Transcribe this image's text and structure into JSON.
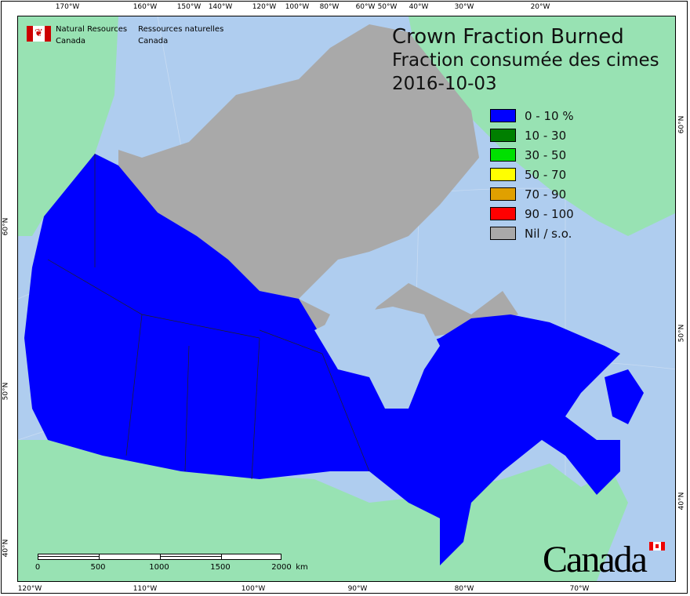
{
  "header": {
    "title": "Crown Fraction Burned",
    "title_fr": "Fraction consumée des cimes",
    "date": "2016-10-03"
  },
  "nrcan": {
    "en_line1": "Natural Resources",
    "en_line2": "Canada",
    "fr_line1": "Ressources naturelles",
    "fr_line2": "Canada"
  },
  "wordmark": "Canada",
  "legend": [
    {
      "label": "0 - 10 %",
      "color": "#0000ff"
    },
    {
      "label": "10 - 30",
      "color": "#007f00"
    },
    {
      "label": "30 - 50",
      "color": "#00e000"
    },
    {
      "label": "50 - 70",
      "color": "#ffff00"
    },
    {
      "label": "70 - 90",
      "color": "#e0a000"
    },
    {
      "label": "90 - 100",
      "color": "#ff0000"
    },
    {
      "label": "Nil / s.o.",
      "color": "#a9a9a9"
    }
  ],
  "top_ticks": [
    "170°W",
    "160°W",
    "150°W",
    "140°W",
    "120°W",
    "100°W",
    "80°W",
    "60°W",
    "50°W",
    "40°W",
    "30°W",
    "20°W"
  ],
  "bottom_ticks": [
    "120°W",
    "110°W",
    "100°W",
    "90°W",
    "80°W",
    "70°W"
  ],
  "left_ticks": [
    "60°N",
    "50°N",
    "40°N"
  ],
  "right_ticks": [
    "60°N",
    "50°N",
    "40°N"
  ],
  "scale_bar": {
    "labels": [
      "0",
      "500",
      "1000",
      "1500",
      "2000"
    ],
    "unit": "km"
  },
  "colors": {
    "water": "#afcdef",
    "land_outside": "#98e2b3",
    "nodata": "#a9a9a9",
    "low": "#0000ff"
  }
}
